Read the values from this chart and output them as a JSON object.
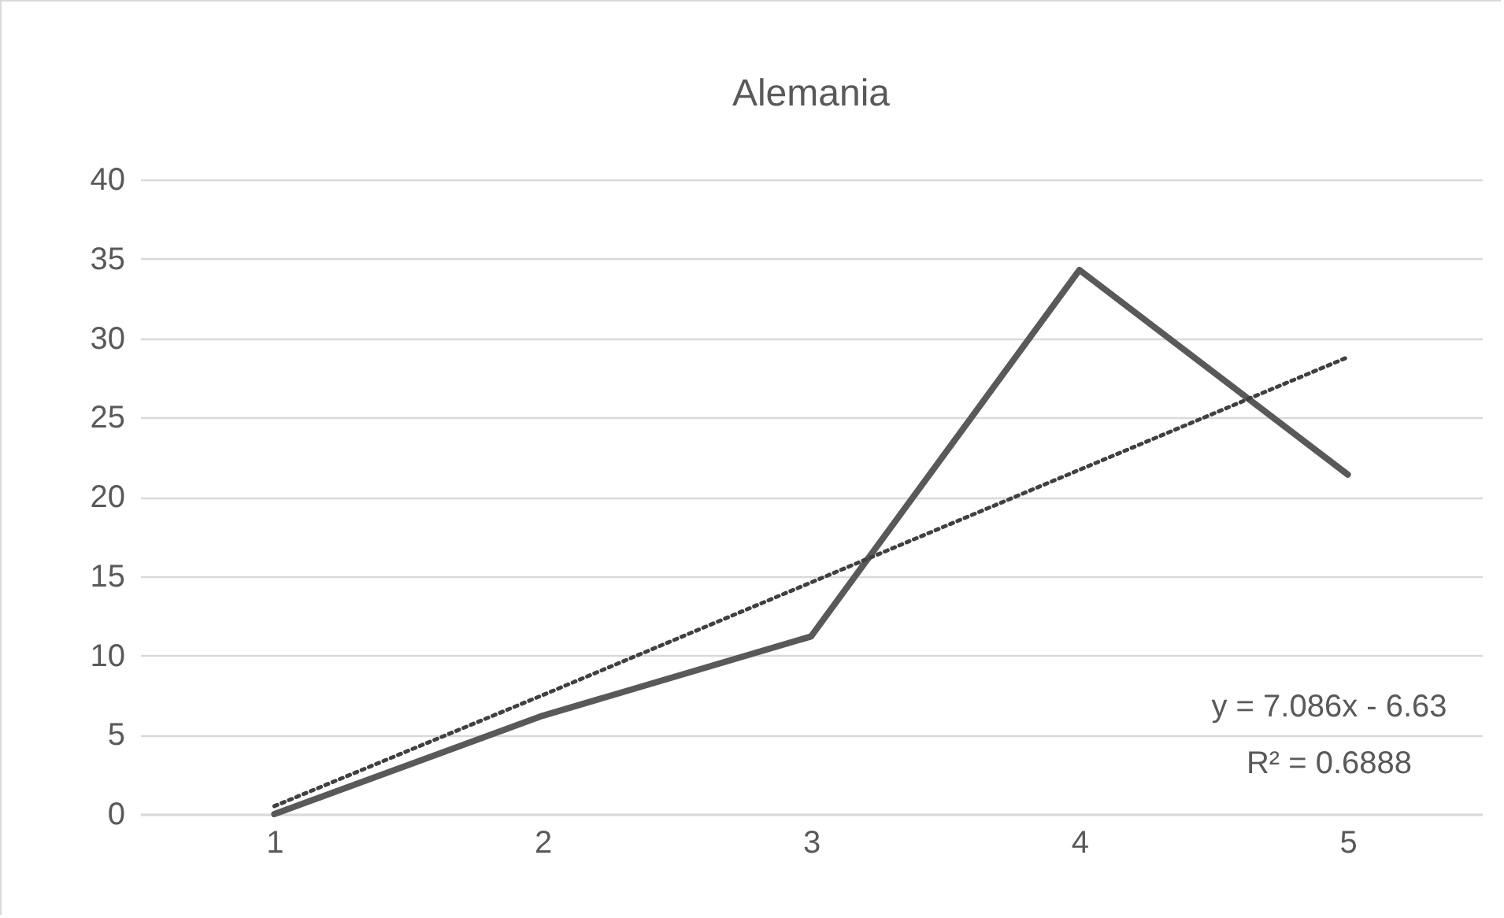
{
  "chart_data": {
    "type": "line",
    "title": "Alemania",
    "categories": [
      "1",
      "2",
      "3",
      "4",
      "5"
    ],
    "series": [
      {
        "color": "#595959",
        "values": [
          0,
          6.2,
          11.2,
          34.3,
          21.4
        ],
        "line_style": "solid"
      },
      {
        "type": "line",
        "color": "#404040",
        "values": [
          0.5,
          7.5,
          14.6,
          21.7,
          28.8
        ],
        "line_style": "dotted"
      }
    ],
    "ylim": [
      0,
      40
    ],
    "yticks": [
      0,
      5,
      10,
      15,
      20,
      25,
      30,
      35,
      40
    ],
    "grid": "y",
    "marker": "none",
    "annotations": [
      "y = 7.086x - 6.63",
      "R² = 0.6888"
    ]
  }
}
